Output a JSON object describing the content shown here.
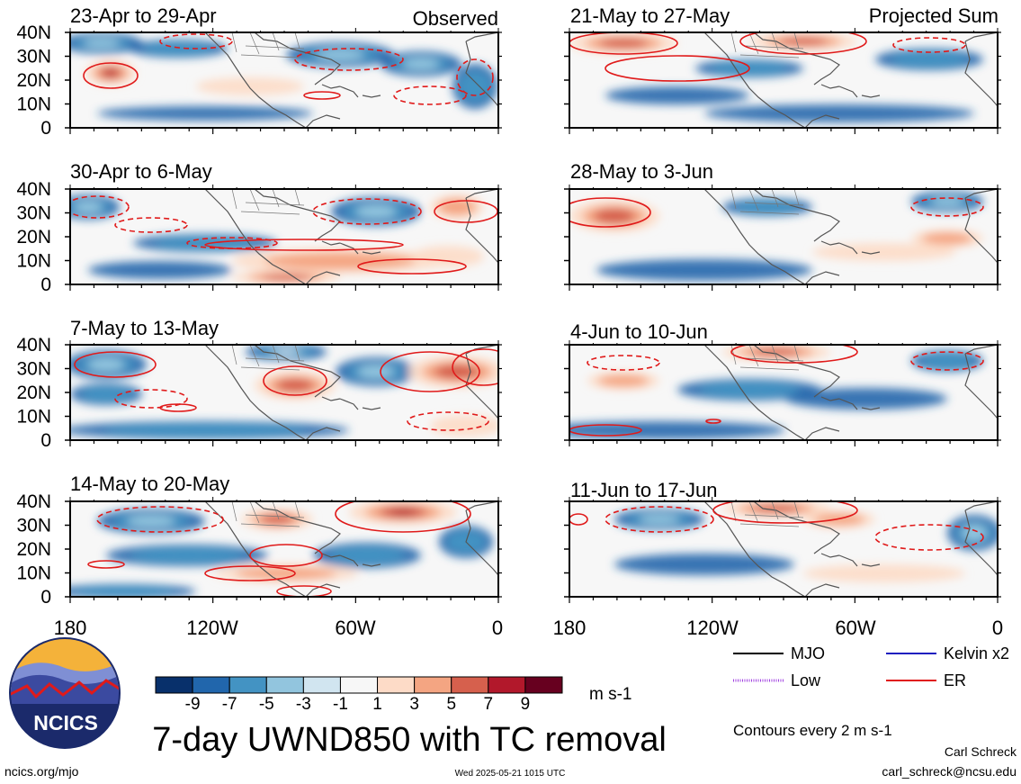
{
  "title": "7-day UWND850 with TC removal",
  "observed_label": "Observed",
  "projected_label": "Projected Sum",
  "units": "m s-1",
  "contour_note": "Contours every 2 m s-1",
  "author": "Carl Schreck",
  "email": "carl_schreck@ncsu.edu",
  "website": "ncics.org/mjo",
  "timestamp": "Wed 2025-05-21 1015 UTC",
  "logo_text": "NCICS",
  "lat_ticks": [
    "40N",
    "30N",
    "20N",
    "10N",
    "0"
  ],
  "lon_ticks": [
    "180",
    "120W",
    "60W",
    "0"
  ],
  "panels_left": [
    {
      "label": "23-Apr to 29-Apr"
    },
    {
      "label": "30-Apr to 6-May"
    },
    {
      "label": "7-May to 13-May"
    },
    {
      "label": "14-May to 20-May"
    }
  ],
  "panels_right": [
    {
      "label": "21-May to 27-May"
    },
    {
      "label": "28-May to 3-Jun"
    },
    {
      "label": "4-Jun to 10-Jun"
    },
    {
      "label": "11-Jun to 17-Jun"
    }
  ],
  "colorbar": {
    "labels": [
      "-9",
      "-7",
      "-5",
      "-3",
      "-1",
      "1",
      "3",
      "5",
      "7",
      "9"
    ],
    "colors": [
      "#08306b",
      "#2166ac",
      "#4393c3",
      "#92c5de",
      "#d1e5f0",
      "#f7f7f7",
      "#fddbc7",
      "#f4a582",
      "#d6604d",
      "#b2182b",
      "#67001f"
    ]
  },
  "legend": [
    {
      "label": "MJO",
      "color": "#000000",
      "style": "solid"
    },
    {
      "label": "Kelvin x2",
      "color": "#1f1fbf",
      "style": "solid"
    },
    {
      "label": "Low",
      "color": "#a040e0",
      "style": "dotted"
    },
    {
      "label": "ER",
      "color": "#e01a1a",
      "style": "solid"
    }
  ]
}
